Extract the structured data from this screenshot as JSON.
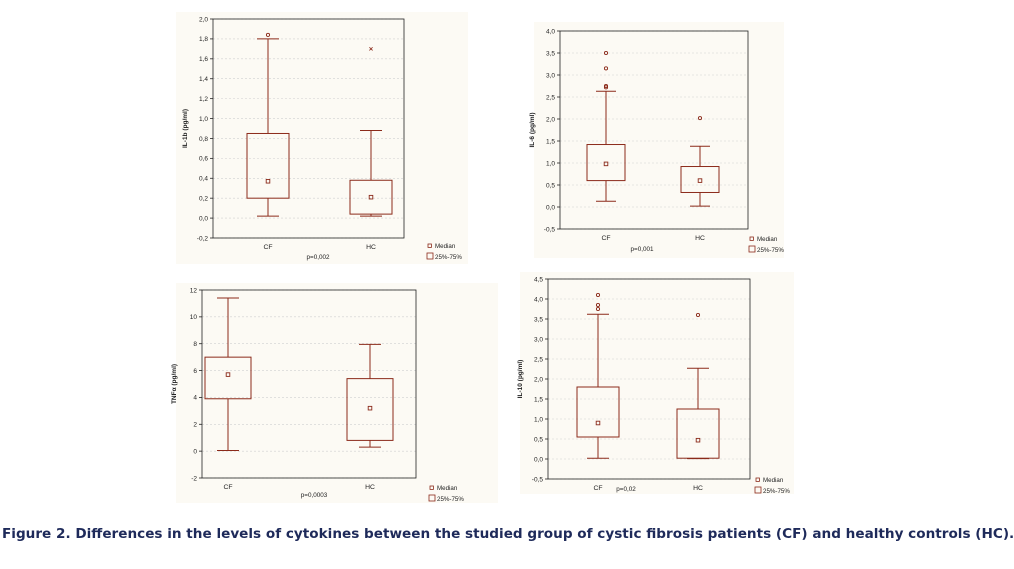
{
  "figure_caption": "Figure 2. Differences in the levels of cytokines between the studied group of cystic fibrosis patients (CF) and healthy controls (HC).",
  "colors": {
    "box": "#8b2a1a",
    "axis": "#222222",
    "grid": "#d0d0d0",
    "panel_bg": "#fcfaf4"
  },
  "chart_data": [
    {
      "type": "boxplot",
      "id": "il1b",
      "ylabel": "IL-1b (pg/ml)",
      "ylim": [
        -0.2,
        2.0
      ],
      "yticks": [
        "-0,2",
        "0,0",
        "0,2",
        "0,4",
        "0,6",
        "0,8",
        "1,0",
        "1,2",
        "1,4",
        "1,6",
        "1,8",
        "2,0"
      ],
      "categories": [
        "CF",
        "HC"
      ],
      "pvalue": "p=0,002",
      "legend": [
        "Median",
        "25%-75%"
      ],
      "outlier_markers": [
        "circle",
        "cross"
      ],
      "boxes": [
        {
          "min": 0.02,
          "q1": 0.2,
          "median": 0.37,
          "q3": 0.85,
          "max": 1.8,
          "outliers": [
            1.84
          ]
        },
        {
          "min": 0.02,
          "q1": 0.04,
          "median": 0.21,
          "q3": 0.38,
          "max": 0.88,
          "outliers": [
            1.7
          ]
        }
      ]
    },
    {
      "type": "boxplot",
      "id": "il6",
      "ylabel": "IL-6 (pg/ml)",
      "ylim": [
        -0.5,
        4.0
      ],
      "yticks": [
        "-0,5",
        "0,0",
        "0,5",
        "1,0",
        "1,5",
        "2,0",
        "2,5",
        "3,0",
        "3,5",
        "4,0"
      ],
      "categories": [
        "CF",
        "HC"
      ],
      "pvalue": "p=0,001",
      "legend": [
        "Median",
        "25%-75%"
      ],
      "boxes": [
        {
          "min": 0.13,
          "q1": 0.6,
          "median": 0.98,
          "q3": 1.42,
          "max": 2.63,
          "outliers": [
            2.72,
            2.75,
            3.15,
            3.5
          ]
        },
        {
          "min": 0.02,
          "q1": 0.33,
          "median": 0.6,
          "q3": 0.92,
          "max": 1.38,
          "outliers": [
            2.02
          ]
        }
      ]
    },
    {
      "type": "boxplot",
      "id": "tnfa",
      "ylabel": "TNFα (pg/ml)",
      "ylim": [
        -2,
        12
      ],
      "yticks": [
        "-2",
        "0",
        "2",
        "4",
        "6",
        "8",
        "10",
        "12"
      ],
      "categories": [
        "CF",
        "HC"
      ],
      "pvalue": "p=0,0003",
      "legend": [
        "Median",
        "25%-75%"
      ],
      "boxes": [
        {
          "min": 0.05,
          "q1": 3.9,
          "median": 5.7,
          "q3": 7.0,
          "max": 11.4,
          "outliers": []
        },
        {
          "min": 0.3,
          "q1": 0.8,
          "median": 3.2,
          "q3": 5.4,
          "max": 7.95,
          "outliers": []
        }
      ]
    },
    {
      "type": "boxplot",
      "id": "il10",
      "ylabel": "IL-10 (pg/ml)",
      "ylim": [
        -0.5,
        4.5
      ],
      "yticks": [
        "-0,5",
        "0,0",
        "0,5",
        "1,0",
        "1,5",
        "2,0",
        "2,5",
        "3,0",
        "3,5",
        "4,0",
        "4,5"
      ],
      "categories": [
        "CF",
        "HC"
      ],
      "pvalue": "p=0,02",
      "legend": [
        "Median",
        "25%-75%"
      ],
      "boxes": [
        {
          "min": 0.02,
          "q1": 0.55,
          "median": 0.9,
          "q3": 1.8,
          "max": 3.62,
          "outliers": [
            3.75,
            3.85,
            4.1
          ]
        },
        {
          "min": 0.01,
          "q1": 0.02,
          "median": 0.47,
          "q3": 1.25,
          "max": 2.27,
          "outliers": [
            3.6
          ]
        }
      ]
    }
  ]
}
